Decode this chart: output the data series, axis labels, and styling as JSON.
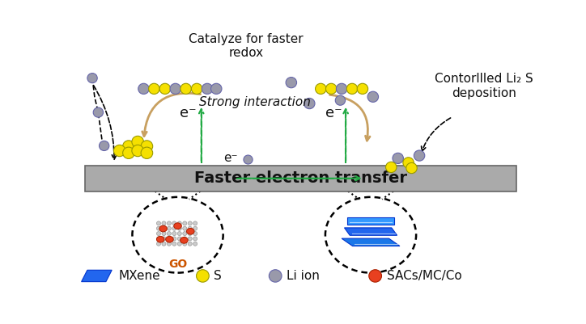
{
  "bg_color": "#ffffff",
  "bar_color": "#aaaaaa",
  "bar_edge": "#666666",
  "bar_text": "Faster electron transfer",
  "bar_text_size": 14,
  "s_color": "#f5e000",
  "s_edge": "#999900",
  "li_color": "#9999aa",
  "li_edge": "#6666aa",
  "red_color": "#e84020",
  "blue_color": "#2266ee",
  "green_arrow_color": "#22aa44",
  "tan_arrow_color": "#c8a060",
  "text_color": "#111111",
  "title_catalyze": "Catalyze for faster\nredox",
  "title_strong": "Strong interaction",
  "title_controlled": "Contorllled Li₂ S\ndeposition",
  "label_go": "GO",
  "label_eminus": "e⁻",
  "legend_mxene": "MXene",
  "legend_s": "S",
  "legend_li": "Li ion",
  "legend_sacs": "SACs/MC/Co",
  "xlim": [
    0,
    10
  ],
  "ylim": [
    0,
    5.6
  ]
}
